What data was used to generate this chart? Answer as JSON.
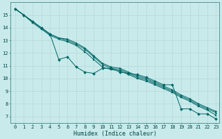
{
  "xlabel": "Humidex (Indice chaleur)",
  "bg_color": "#c8eaea",
  "grid_color": "#b8d8d8",
  "line_color": "#006666",
  "xlim": [
    -0.5,
    23.4
  ],
  "ylim": [
    6.5,
    16.0
  ],
  "yticks": [
    7,
    8,
    9,
    10,
    11,
    12,
    13,
    14,
    15
  ],
  "xticks": [
    0,
    1,
    2,
    3,
    4,
    5,
    6,
    7,
    8,
    9,
    10,
    11,
    12,
    13,
    14,
    15,
    16,
    17,
    18,
    19,
    20,
    21,
    22,
    23
  ],
  "series": [
    [
      15.5,
      15.0,
      14.5,
      14.0,
      13.5,
      11.5,
      11.7,
      10.9,
      10.5,
      10.4,
      10.8,
      10.8,
      10.5,
      10.4,
      10.3,
      10.1,
      9.8,
      9.5,
      9.5,
      7.6,
      7.6,
      7.2,
      7.2,
      6.8
    ],
    [
      15.5,
      15.0,
      14.5,
      14.0,
      13.5,
      13.2,
      13.1,
      12.8,
      12.4,
      11.8,
      11.2,
      10.9,
      10.8,
      10.5,
      10.2,
      10.0,
      9.7,
      9.4,
      9.1,
      8.7,
      8.4,
      8.0,
      7.7,
      7.4
    ],
    [
      15.5,
      15.0,
      14.5,
      14.0,
      13.5,
      13.2,
      13.0,
      12.7,
      12.3,
      11.7,
      11.1,
      10.8,
      10.7,
      10.4,
      10.1,
      9.9,
      9.6,
      9.3,
      9.0,
      8.6,
      8.3,
      7.9,
      7.6,
      7.3
    ],
    [
      15.5,
      15.0,
      14.4,
      13.9,
      13.4,
      13.1,
      12.9,
      12.6,
      12.1,
      11.5,
      10.9,
      10.7,
      10.6,
      10.3,
      10.0,
      9.8,
      9.5,
      9.2,
      8.9,
      8.5,
      8.2,
      7.8,
      7.5,
      7.1
    ]
  ],
  "markers": [
    "D",
    ">",
    "^",
    "s"
  ],
  "tick_fontsize": 5.0,
  "xlabel_fontsize": 6.0
}
